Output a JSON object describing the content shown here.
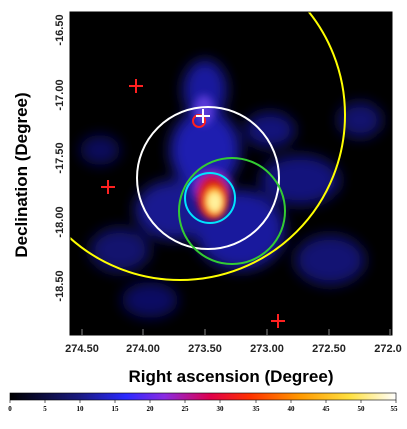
{
  "figure": {
    "x_axis_title": "Right ascension (Degree)",
    "y_axis_title": "Declination (Degree)",
    "x_ticks": [
      "274.50",
      "274.00",
      "273.50",
      "273.00",
      "272.50",
      "272.0"
    ],
    "y_ticks": [
      "-16.50",
      "-17.00",
      "-17.50",
      "-18.00",
      "-18.50"
    ],
    "colorbar_ticks": [
      "0",
      "5",
      "10",
      "15",
      "20",
      "25",
      "30",
      "35",
      "40",
      "45",
      "50",
      "55"
    ],
    "colors": {
      "background": "#000000",
      "large_circle": "#ffff00",
      "white_circle": "#ffffff",
      "green_circle": "#33cc33",
      "cyan_circle": "#00e5ff",
      "red_markers": "#ff2020",
      "hotspot": "#ffee66"
    },
    "markers": {
      "crosses": [
        "red cross",
        "red cross",
        "red cross",
        "white cross"
      ],
      "small_red_circle": "red ring marker"
    }
  }
}
